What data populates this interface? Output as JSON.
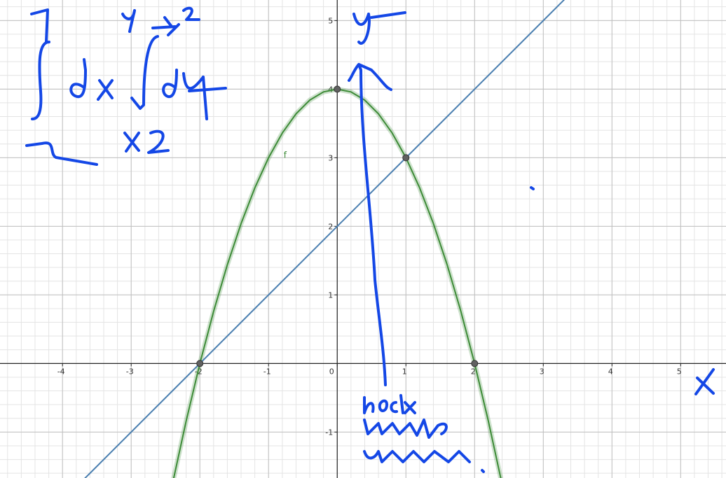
{
  "chart_data": {
    "type": "line",
    "xlim": [
      -4.91,
      5.66
    ],
    "ylim": [
      -1.67,
      5.3
    ],
    "xticks": [
      -4,
      -3,
      -2,
      -1,
      0,
      1,
      2,
      3,
      4,
      5
    ],
    "yticks": [
      -1,
      1,
      2,
      3,
      4,
      5
    ],
    "grid": true,
    "series": [
      {
        "name": "f",
        "color": "#3d8b37",
        "x": [
          -2.4,
          -2.2,
          -2,
          -1.8,
          -1.6,
          -1.4,
          -1.2,
          -1,
          -0.8,
          -0.6,
          -0.4,
          -0.2,
          0,
          0.2,
          0.4,
          0.6,
          0.8,
          1,
          1.2,
          1.4,
          1.6,
          1.8,
          2,
          2.2,
          2.4
        ],
        "values": [
          -1.76,
          -0.84,
          0,
          0.76,
          1.44,
          2.04,
          2.56,
          3,
          3.36,
          3.64,
          3.84,
          3.96,
          4,
          3.96,
          3.84,
          3.64,
          3.36,
          3,
          2.56,
          2.04,
          1.44,
          0.76,
          0,
          -0.84,
          -1.76
        ]
      },
      {
        "color": "#4a7fb0",
        "x": [
          -4,
          3.5
        ],
        "values": [
          -2,
          5.5
        ]
      }
    ],
    "points": {
      "color": "#616161",
      "x": [
        -2,
        0,
        1,
        2
      ],
      "values": [
        0,
        4,
        3,
        0
      ]
    },
    "annotations": [
      "y",
      "X"
    ]
  }
}
